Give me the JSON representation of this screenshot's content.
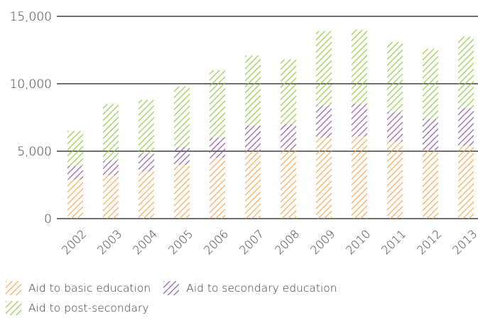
{
  "chart_data": {
    "type": "bar",
    "stacked": true,
    "categories": [
      "2002",
      "2003",
      "2004",
      "2005",
      "2006",
      "2007",
      "2008",
      "2009",
      "2010",
      "2011",
      "2012",
      "2013"
    ],
    "series": [
      {
        "name": "Aid to basic education",
        "color": "#f4a24a",
        "values": [
          2900,
          3200,
          3500,
          4000,
          4500,
          5000,
          5100,
          6000,
          6100,
          5700,
          5100,
          5400
        ]
      },
      {
        "name": "Aid to secondary education",
        "color": "#8a4fa8",
        "values": [
          1000,
          1100,
          1300,
          1300,
          1500,
          1900,
          1900,
          2400,
          2400,
          2200,
          2300,
          2800
        ]
      },
      {
        "name": "Aid to post-secondary",
        "color": "#8cc63f",
        "values": [
          2600,
          4200,
          4000,
          4500,
          5000,
          5200,
          4800,
          5500,
          5500,
          5200,
          5200,
          5300
        ]
      }
    ],
    "ylim": [
      0,
      15000
    ],
    "yticks": [
      0,
      5000,
      10000,
      15000
    ],
    "ytick_labels": [
      "0",
      "5,000",
      "10,000",
      "15,000"
    ],
    "grid": true,
    "legend_position": "bottom-left",
    "pattern": "diagonal-hatch"
  },
  "legend": {
    "basic": "Aid to basic education",
    "secondary": "Aid to secondary education",
    "post": "Aid to post-secondary"
  }
}
